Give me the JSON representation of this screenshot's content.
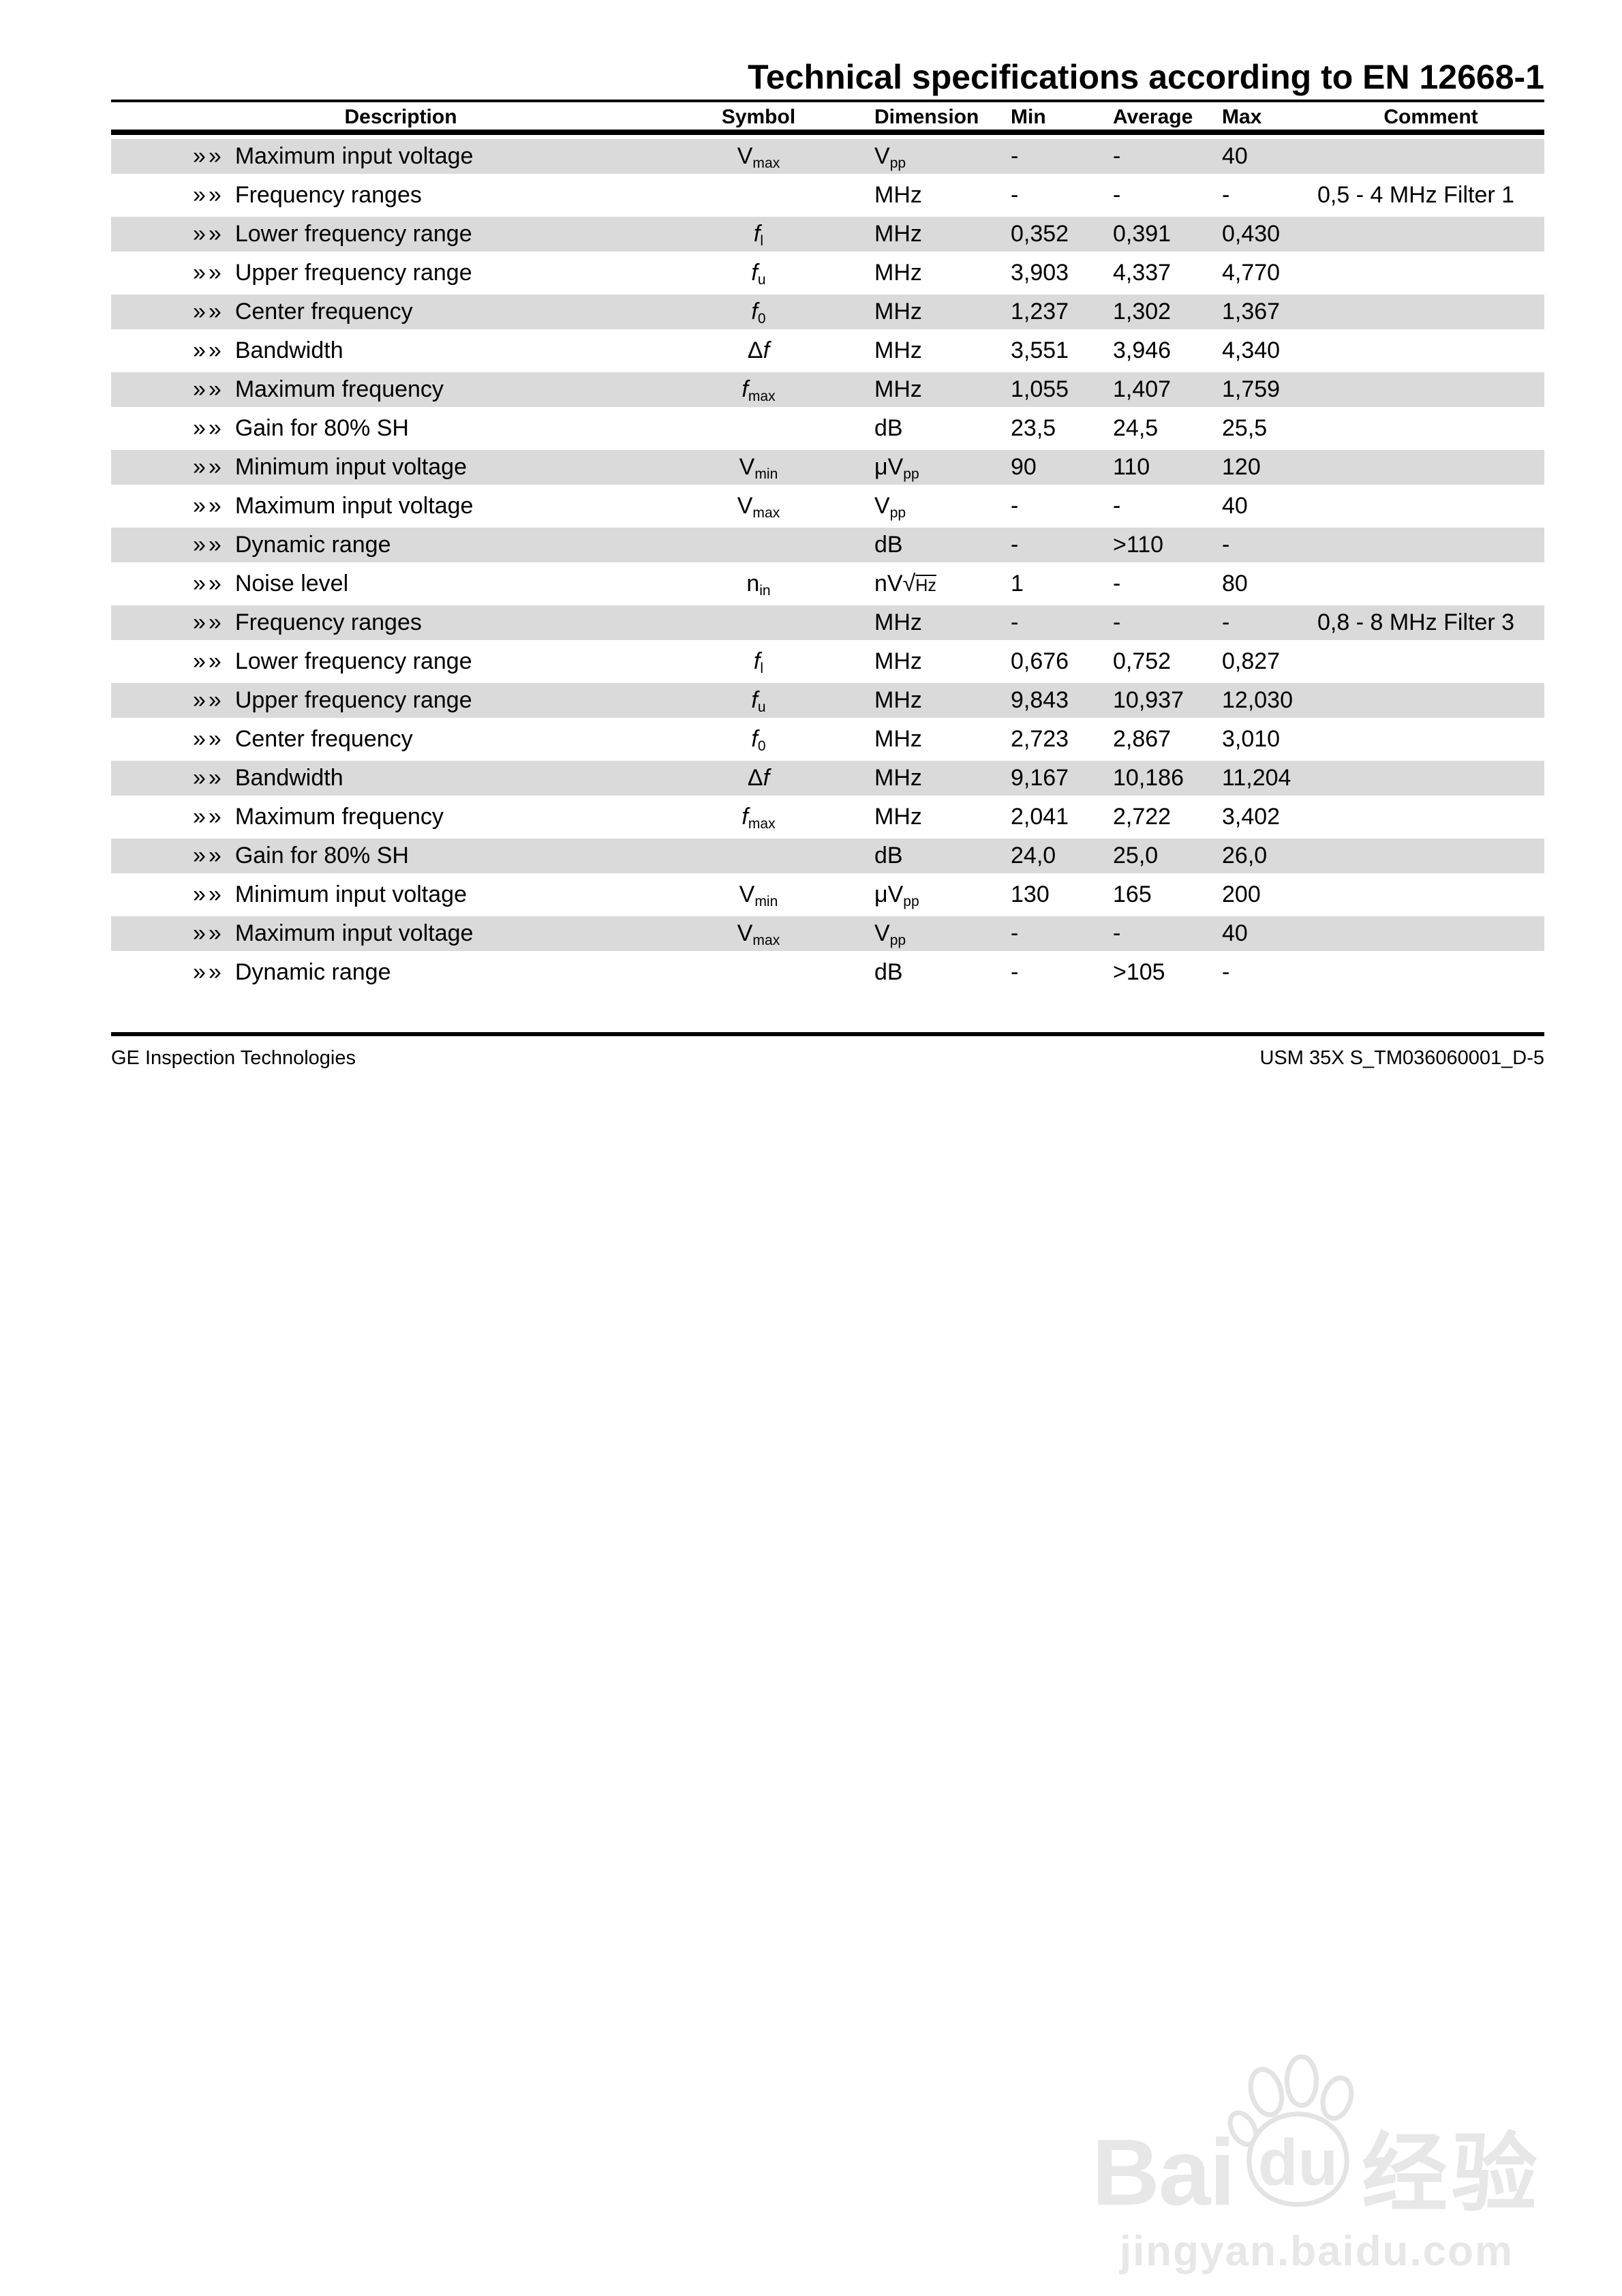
{
  "page": {
    "title": "Technical specifications according to EN 12668-1",
    "row_marker": "»»"
  },
  "colors": {
    "row_shade": "#dadada",
    "rule": "#000000",
    "watermark": "#e7e7e7"
  },
  "table": {
    "columns": [
      {
        "key": "description",
        "label": "Description"
      },
      {
        "key": "symbol",
        "label": "Symbol"
      },
      {
        "key": "dimension",
        "label": "Dimension"
      },
      {
        "key": "min",
        "label": "Min"
      },
      {
        "key": "average",
        "label": "Average"
      },
      {
        "key": "max",
        "label": "Max"
      },
      {
        "key": "comment",
        "label": "Comment"
      }
    ],
    "rows": [
      {
        "description": "Maximum input voltage",
        "symbol": "V_{max}",
        "dimension": "V_{pp}",
        "min": "-",
        "average": "-",
        "max": "40",
        "comment": "",
        "shaded": true
      },
      {
        "description": "Frequency ranges",
        "symbol": "",
        "dimension": "MHz",
        "min": "-",
        "average": "-",
        "max": "-",
        "comment": "0,5 - 4 MHz Filter 1",
        "shaded": false
      },
      {
        "description": "Lower frequency range",
        "symbol": "/{f}_{l}",
        "dimension": "MHz",
        "min": "0,352",
        "average": "0,391",
        "max": "0,430",
        "comment": "",
        "shaded": true
      },
      {
        "description": "Upper frequency range",
        "symbol": "/{f}_{u}",
        "dimension": "MHz",
        "min": "3,903",
        "average": "4,337",
        "max": "4,770",
        "comment": "",
        "shaded": false
      },
      {
        "description": "Center frequency",
        "symbol": "/{f}_{0}",
        "dimension": "MHz",
        "min": "1,237",
        "average": "1,302",
        "max": "1,367",
        "comment": "",
        "shaded": true
      },
      {
        "description": "Bandwidth",
        "symbol": "Δ/{f}",
        "dimension": "MHz",
        "min": "3,551",
        "average": "3,946",
        "max": "4,340",
        "comment": "",
        "shaded": false
      },
      {
        "description": "Maximum frequency",
        "symbol": "/{f}_{max}",
        "dimension": "MHz",
        "min": "1,055",
        "average": "1,407",
        "max": "1,759",
        "comment": "",
        "shaded": true
      },
      {
        "description": "Gain for 80% SH",
        "symbol": "",
        "dimension": "dB",
        "min": "23,5",
        "average": "24,5",
        "max": "25,5",
        "comment": "",
        "shaded": false
      },
      {
        "description": "Minimum input voltage",
        "symbol": "V_{min}",
        "dimension": "μV_{pp}",
        "min": "90",
        "average": "110",
        "max": "120",
        "comment": "",
        "shaded": true
      },
      {
        "description": "Maximum input voltage",
        "symbol": "V_{max}",
        "dimension": "V_{pp}",
        "min": "-",
        "average": "-",
        "max": "40",
        "comment": "",
        "shaded": false
      },
      {
        "description": "Dynamic range",
        "symbol": "",
        "dimension": "dB",
        "min": "-",
        "average": ">110",
        "max": "-",
        "comment": "",
        "shaded": true
      },
      {
        "description": "Noise level",
        "symbol": "n_{in}",
        "dimension": "nVr{Hz}",
        "min": "1",
        "average": "-",
        "max": "80",
        "comment": "",
        "shaded": false
      },
      {
        "description": "Frequency ranges",
        "symbol": "",
        "dimension": "MHz",
        "min": "-",
        "average": "-",
        "max": "-",
        "comment": "0,8 - 8 MHz Filter 3",
        "shaded": true
      },
      {
        "description": "Lower frequency range",
        "symbol": "/{f}_{l}",
        "dimension": "MHz",
        "min": "0,676",
        "average": "0,752",
        "max": "0,827",
        "comment": "",
        "shaded": false
      },
      {
        "description": "Upper frequency range",
        "symbol": "/{f}_{u}",
        "dimension": "MHz",
        "min": "9,843",
        "average": "10,937",
        "max": "12,030",
        "comment": "",
        "shaded": true
      },
      {
        "description": "Center frequency",
        "symbol": "/{f}_{0}",
        "dimension": "MHz",
        "min": "2,723",
        "average": "2,867",
        "max": "3,010",
        "comment": "",
        "shaded": false
      },
      {
        "description": "Bandwidth",
        "symbol": "Δ/{f}",
        "dimension": "MHz",
        "min": "9,167",
        "average": "10,186",
        "max": "11,204",
        "comment": "",
        "shaded": true
      },
      {
        "description": "Maximum frequency",
        "symbol": "/{f}_{max}",
        "dimension": "MHz",
        "min": "2,041",
        "average": "2,722",
        "max": "3,402",
        "comment": "",
        "shaded": false
      },
      {
        "description": "Gain for 80% SH",
        "symbol": "",
        "dimension": "dB",
        "min": "24,0",
        "average": "25,0",
        "max": "26,0",
        "comment": "",
        "shaded": true
      },
      {
        "description": "Minimum input voltage",
        "symbol": "V_{min}",
        "dimension": "μV_{pp}",
        "min": "130",
        "average": "165",
        "max": "200",
        "comment": "",
        "shaded": false
      },
      {
        "description": "Maximum input voltage",
        "symbol": "V_{max}",
        "dimension": "V_{pp}",
        "min": "-",
        "average": "-",
        "max": "40",
        "comment": "",
        "shaded": true
      },
      {
        "description": "Dynamic range",
        "symbol": "",
        "dimension": "dB",
        "min": "-",
        "average": ">105",
        "max": "-",
        "comment": "",
        "shaded": false
      }
    ]
  },
  "footer": {
    "left": "GE Inspection Technologies",
    "right": "USM 35X S_TM036060001_D-5"
  },
  "watermark": {
    "brand": "Bai",
    "brand2": "du",
    "cn": "经验",
    "url": "jingyan.baidu.com"
  }
}
